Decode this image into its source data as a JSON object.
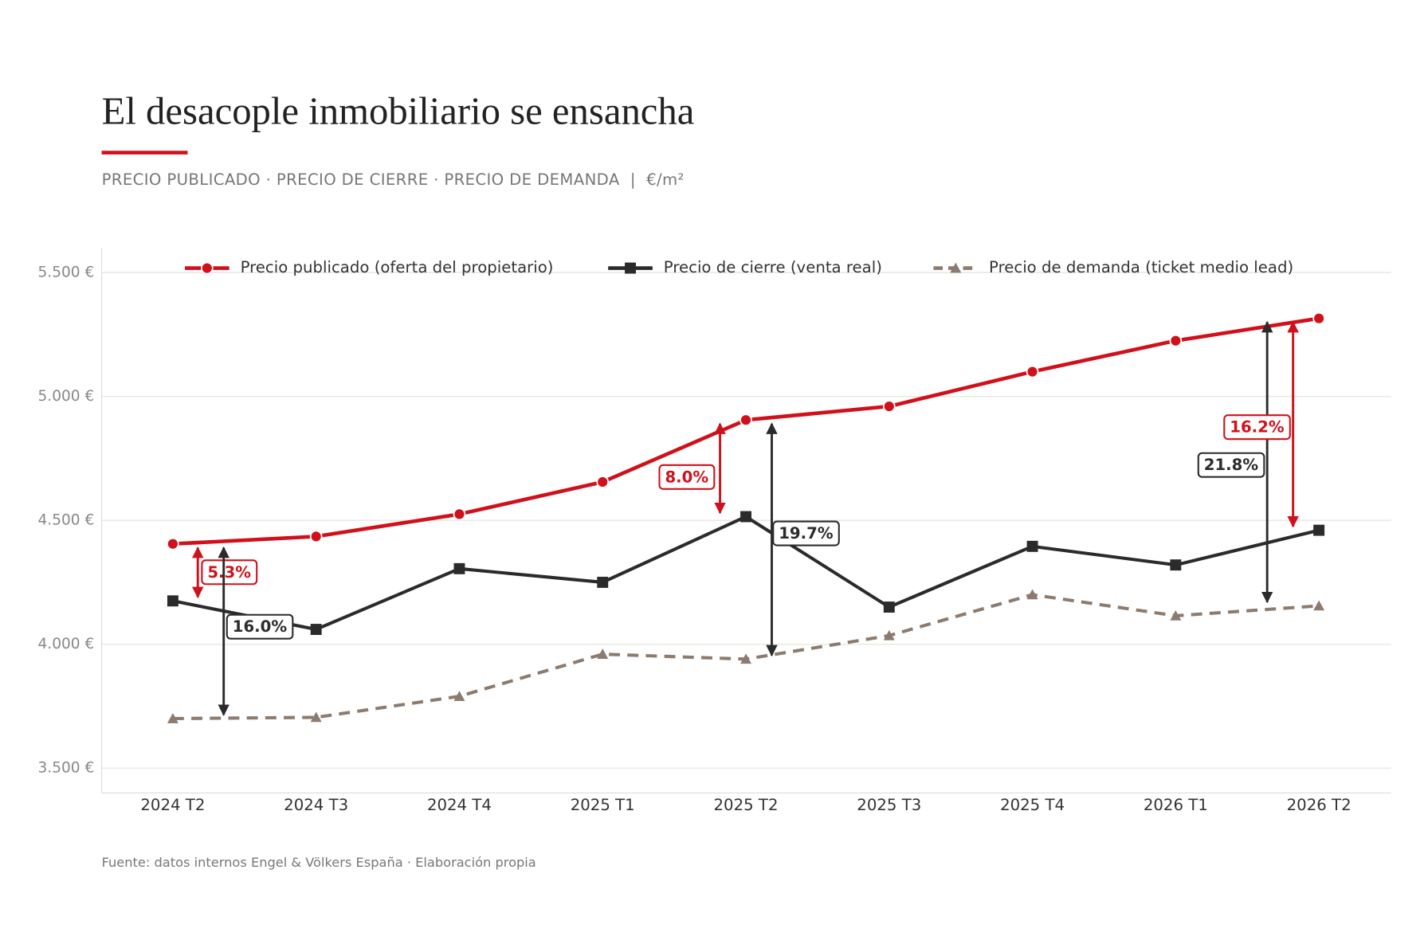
{
  "chart_data": {
    "type": "line",
    "title": "El desacople inmobiliario se ensancha",
    "subtitle": "PRECIO PUBLICADO · PRECIO DE CIERRE · PRECIO DE DEMANDA  |  €/m²",
    "source": "Fuente: datos internos Engel & Völkers España · Elaboración propia",
    "categories": [
      "2024 T2",
      "2024 T3",
      "2024 T4",
      "2025 T1",
      "2025 T2",
      "2025 T3",
      "2025 T4",
      "2026 T1",
      "2026 T2"
    ],
    "series": [
      {
        "name": "Precio publicado (oferta del propietario)",
        "color": "#d0101a",
        "marker": "circle",
        "dash": false,
        "values": [
          4405,
          4435,
          4525,
          4655,
          4905,
          4960,
          5100,
          5225,
          5315
        ]
      },
      {
        "name": "Precio de cierre (venta real)",
        "color": "#2b2b2b",
        "marker": "square",
        "dash": false,
        "values": [
          4175,
          4060,
          4305,
          4250,
          4515,
          4150,
          4395,
          4320,
          4460
        ]
      },
      {
        "name": "Precio de demanda (ticket medio lead)",
        "color": "#8c7b6e",
        "marker": "triangle",
        "dash": true,
        "values": [
          3700,
          3705,
          3790,
          3960,
          3940,
          4035,
          4200,
          4115,
          4155
        ]
      }
    ],
    "annotations": [
      "5.3%",
      "16.0%",
      "8.0%",
      "19.7%",
      "21.8%",
      "16.2%"
    ],
    "ylim": [
      3400,
      5600
    ],
    "yticks": [
      {
        "value": 3500,
        "label": "3.500 €"
      },
      {
        "value": 4000,
        "label": "4.000 €"
      },
      {
        "value": 4500,
        "label": "4.500 €"
      },
      {
        "value": 5000,
        "label": "5.000 €"
      },
      {
        "value": 5500,
        "label": "5.500 €"
      }
    ],
    "grid": true,
    "legend": "top"
  }
}
